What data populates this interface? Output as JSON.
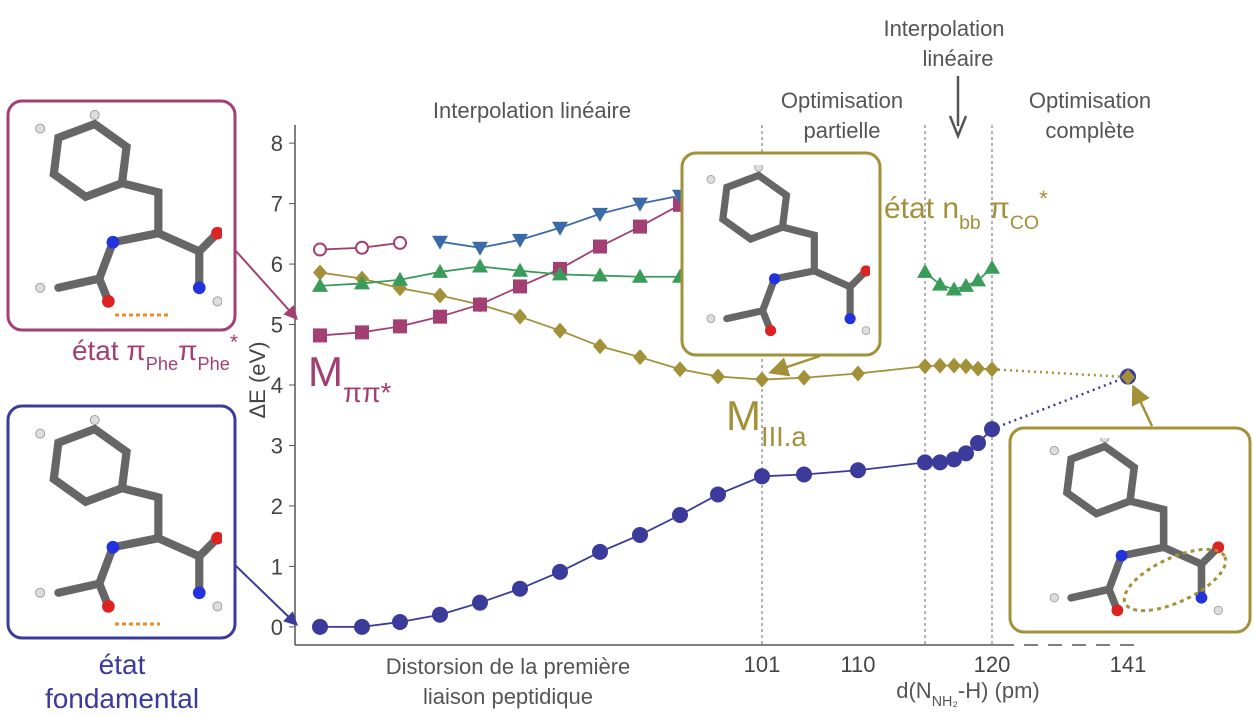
{
  "chart_data": {
    "type": "line",
    "y_label": "ΔE (eV)",
    "x_label": [
      {
        "t": "d(N"
      },
      {
        "t": "NH₂",
        "pos": "sub"
      },
      {
        "t": "-H) (pm)"
      }
    ],
    "x_note": [
      "Distorsion de la première",
      "liaison peptidique"
    ],
    "categories": [
      null,
      null,
      null,
      null,
      null,
      null,
      null,
      null,
      null,
      null,
      null,
      "101",
      null,
      "110",
      null,
      null,
      null,
      null,
      null,
      "120",
      "141"
    ],
    "ylim": [
      -0.3,
      8.3
    ],
    "yticks": [
      0,
      1,
      2,
      3,
      4,
      5,
      6,
      7,
      8
    ],
    "region_labels": [
      {
        "lines": [
          "Interpolation linéaire"
        ]
      },
      {
        "lines": [
          "Optimisation",
          "partielle"
        ]
      },
      {
        "lines": [
          "Interpolation",
          "linéaire"
        ]
      },
      {
        "lines": [
          "Optimisation",
          "complète"
        ]
      }
    ],
    "series": [
      {
        "color": "#3b3b9c",
        "marker": "circle",
        "last_segment": "dotted",
        "values": [
          0.0,
          0.0,
          0.08,
          0.2,
          0.4,
          0.63,
          0.91,
          1.24,
          1.52,
          1.85,
          2.19,
          2.49,
          2.52,
          2.59,
          2.72,
          2.72,
          2.77,
          2.87,
          3.04,
          3.27,
          4.14
        ]
      },
      {
        "color": "#a3913a",
        "marker": "diamond",
        "last_segment": "dotted",
        "values": [
          5.86,
          5.76,
          5.6,
          5.48,
          5.33,
          5.13,
          4.9,
          4.64,
          4.46,
          4.26,
          4.14,
          4.09,
          4.12,
          4.19,
          4.31,
          4.32,
          4.32,
          4.31,
          4.27,
          4.26,
          4.13
        ]
      },
      {
        "color": "#a33f72",
        "marker": "square",
        "values": [
          4.82,
          4.87,
          4.97,
          5.13,
          5.33,
          5.63,
          5.92,
          6.29,
          6.62,
          6.98,
          null,
          null,
          null,
          null,
          null,
          null,
          null,
          null,
          null,
          null,
          null
        ]
      },
      {
        "color": "#3a9b5b",
        "marker": "triangle",
        "values": [
          5.64,
          5.68,
          5.74,
          5.87,
          5.96,
          5.89,
          5.83,
          5.81,
          5.79,
          5.79,
          null,
          null,
          null,
          null,
          5.87,
          5.66,
          5.58,
          5.64,
          5.73,
          5.94,
          null
        ]
      },
      {
        "color": "#3b6aa8",
        "marker": "triangle-down",
        "values": [
          null,
          null,
          null,
          6.37,
          6.27,
          6.4,
          6.6,
          6.83,
          7.0,
          7.13,
          null,
          null,
          null,
          null,
          null,
          null,
          null,
          null,
          null,
          null,
          null
        ]
      },
      {
        "color": "#a33f72",
        "marker": "open-circle",
        "values": [
          6.24,
          6.27,
          6.35,
          null,
          null,
          null,
          null,
          null,
          null,
          null,
          null,
          null,
          null,
          null,
          null,
          null,
          null,
          null,
          null,
          null,
          null
        ]
      }
    ],
    "labels": {
      "m_pipi": [
        {
          "t": "M"
        },
        {
          "t": "ππ*",
          "pos": "sub"
        }
      ],
      "m_iiia": [
        {
          "t": "M"
        },
        {
          "t": "III.a",
          "pos": "sub"
        }
      ],
      "n_state": [
        {
          "t": "état n"
        },
        {
          "t": "bb",
          "pos": "sub"
        },
        {
          "t": " π"
        },
        {
          "t": "CO",
          "pos": "sub"
        },
        {
          "t": "*",
          "pos": "sup"
        }
      ]
    },
    "states": {
      "pi": [
        {
          "t": "état π"
        },
        {
          "t": "Phe",
          "pos": "sub"
        },
        {
          "t": "π"
        },
        {
          "t": "Phe",
          "pos": "sub"
        },
        {
          "t": "*",
          "pos": "sup"
        }
      ],
      "ground": [
        "état",
        "fondamental"
      ]
    }
  }
}
